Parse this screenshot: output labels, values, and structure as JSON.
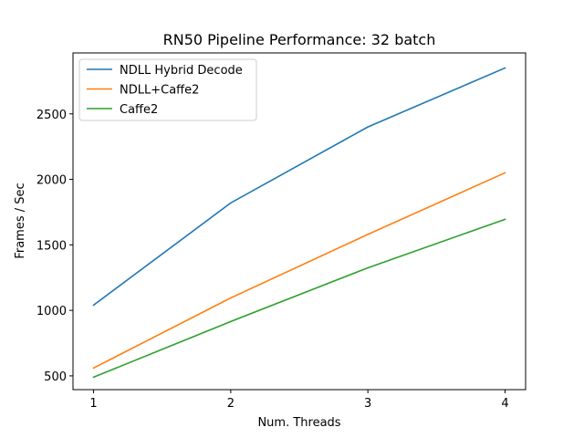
{
  "chart_data": {
    "type": "line",
    "title": "RN50 Pipeline Performance: 32 batch",
    "xlabel": "Num. Threads",
    "ylabel": "Frames / Sec",
    "x": [
      1,
      2,
      3,
      4
    ],
    "xticks": [
      "1",
      "2",
      "3",
      "4"
    ],
    "yticks": [
      "500",
      "1000",
      "1500",
      "2000",
      "2500"
    ],
    "xlim": [
      0.85,
      4.15
    ],
    "ylim": [
      395,
      2965
    ],
    "grid": false,
    "legend_position": "top-left",
    "series": [
      {
        "name": "NDLL Hybrid Decode",
        "color": "#1f77b4",
        "values": [
          1040,
          1820,
          2400,
          2850
        ]
      },
      {
        "name": "NDLL+Caffe2",
        "color": "#ff7f0e",
        "values": [
          560,
          1095,
          1580,
          2050
        ]
      },
      {
        "name": "Caffe2",
        "color": "#2ca02c",
        "values": [
          490,
          915,
          1325,
          1695
        ]
      }
    ]
  }
}
